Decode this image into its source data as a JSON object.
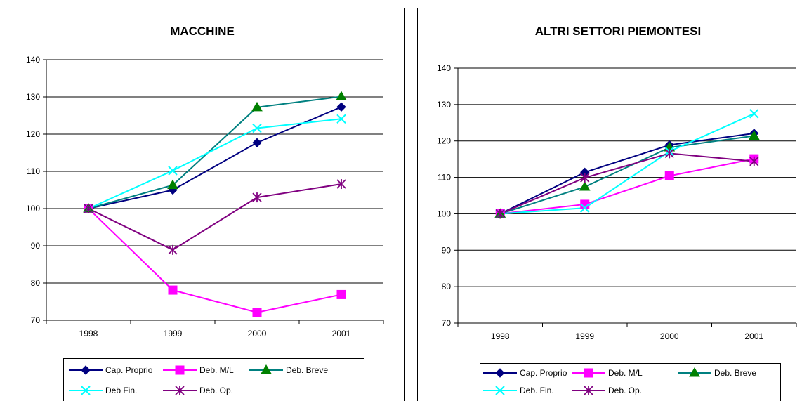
{
  "chart_data": [
    {
      "type": "line",
      "title": "MACCHINE",
      "categories": [
        "1998",
        "1999",
        "2000",
        "2001"
      ],
      "ylim": [
        70,
        140
      ],
      "yticks": [
        70,
        80,
        90,
        100,
        110,
        120,
        130,
        140
      ],
      "grid": true,
      "legend_position": "bottom",
      "series": [
        {
          "name": "Cap. Proprio",
          "values": [
            100,
            105,
            117.7,
            127.3
          ],
          "color": "#000080",
          "marker": "diamond"
        },
        {
          "name": "Deb. M/L",
          "values": [
            100,
            78.1,
            72.1,
            76.9
          ],
          "color": "#ff00ff",
          "marker": "square"
        },
        {
          "name": "Deb. Breve",
          "values": [
            100,
            106.3,
            127.2,
            130.1
          ],
          "color": "#008080",
          "marker": "triangle",
          "marker_color": "#008000"
        },
        {
          "name": "Deb Fin.",
          "values": [
            100,
            110.2,
            121.6,
            124.1
          ],
          "color": "#00ffff",
          "marker": "x"
        },
        {
          "name": "Deb. Op.",
          "values": [
            100,
            88.9,
            103,
            106.6
          ],
          "color": "#800080",
          "marker": "star"
        }
      ]
    },
    {
      "type": "line",
      "title": "ALTRI SETTORI PIEMONTESI",
      "categories": [
        "1998",
        "1999",
        "2000",
        "2001"
      ],
      "ylim": [
        70,
        140
      ],
      "yticks": [
        70,
        80,
        90,
        100,
        110,
        120,
        130,
        140
      ],
      "grid": true,
      "legend_position": "bottom",
      "series": [
        {
          "name": "Cap. Proprio",
          "values": [
            100,
            111.4,
            118.9,
            122.1
          ],
          "color": "#000080",
          "marker": "diamond"
        },
        {
          "name": "Deb. M/L",
          "values": [
            100,
            102.6,
            110.4,
            115.1
          ],
          "color": "#ff00ff",
          "marker": "square"
        },
        {
          "name": "Deb. Breve",
          "values": [
            100,
            107.4,
            118.2,
            121.4
          ],
          "color": "#008080",
          "marker": "triangle",
          "marker_color": "#008000"
        },
        {
          "name": "Deb. Fin.",
          "values": [
            100,
            101.6,
            117.1,
            127.5
          ],
          "color": "#00ffff",
          "marker": "x"
        },
        {
          "name": "Deb. Op.",
          "values": [
            100,
            109.9,
            116.6,
            114.4
          ],
          "color": "#800080",
          "marker": "star"
        }
      ]
    }
  ]
}
